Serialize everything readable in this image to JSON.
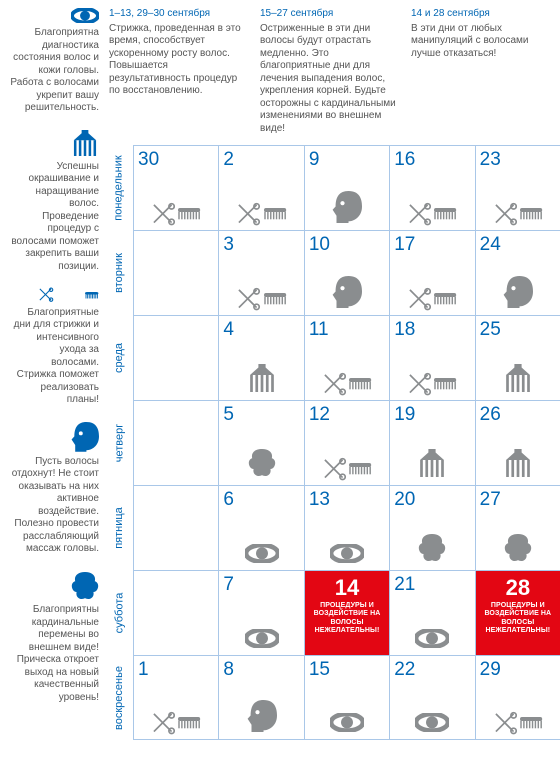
{
  "colors": {
    "accent": "#0066b3",
    "grid": "#a9c7e8",
    "icon": "#8a8d8f",
    "warn_bg": "#e30613",
    "warn_text": "#ffffff",
    "text": "#555555"
  },
  "legend": [
    {
      "icon": "eye",
      "text": "Благоприятна диагностика состояния волос и кожи головы. Работа с волосами укрепит вашу решительность."
    },
    {
      "icon": "color-comb",
      "text": "Успешны окрашивание и наращивание волос. Проведение процедур с волосами поможет закрепить ваши позиции."
    },
    {
      "icon": "cut-comb",
      "text": "Благоприятные дни для стрижки и интенсивного ухода за волосами. Стрижка поможет реализовать планы!"
    },
    {
      "icon": "head",
      "text": "Пусть волосы отдохнут! Не стоит оказывать на них активное воздействие. Полезно провести расслабляющий массаж головы."
    },
    {
      "icon": "curl",
      "text": "Благоприятны кардинальные перемены во внешнем виде! Прическа откроет выход на новый качественный уровень!"
    }
  ],
  "periods": [
    {
      "title": "1–13, 29–30 сентября",
      "text": "Стрижка, проведенная в это время, способствует ускоренному росту волос. Повышается результативность процедур по восстановлению."
    },
    {
      "title": "15–27 сентября",
      "text": "Остриженные в эти дни волосы будут отрастать медленно. Это благоприятные дни для лечения выпадения волос, укрепления корней. Будьте осторожны с кардинальными изменениями во внешнем виде!"
    },
    {
      "title": "14 и 28 сентября",
      "text": "В эти дни от любых манипуляций с волосами лучше отказаться!"
    }
  ],
  "day_labels": [
    "понедельник",
    "вторник",
    "среда",
    "четверг",
    "пятница",
    "суббота",
    "воскресенье"
  ],
  "rows": [
    [
      {
        "n": 30,
        "icons": [
          "cut-comb"
        ]
      },
      {
        "n": 2,
        "icons": [
          "cut-comb"
        ]
      },
      {
        "n": 9,
        "icons": [
          "head"
        ]
      },
      {
        "n": 16,
        "icons": [
          "cut-comb"
        ]
      },
      {
        "n": 23,
        "icons": [
          "cut-comb"
        ]
      }
    ],
    [
      {
        "n": null,
        "icons": []
      },
      {
        "n": 3,
        "icons": [
          "cut-comb"
        ]
      },
      {
        "n": 10,
        "icons": [
          "head"
        ]
      },
      {
        "n": 17,
        "icons": [
          "cut-comb"
        ]
      },
      {
        "n": 24,
        "icons": [
          "head"
        ]
      }
    ],
    [
      {
        "n": null,
        "icons": []
      },
      {
        "n": 4,
        "icons": [
          "color-comb"
        ]
      },
      {
        "n": 11,
        "icons": [
          "cut-comb"
        ]
      },
      {
        "n": 18,
        "icons": [
          "cut-comb"
        ]
      },
      {
        "n": 25,
        "icons": [
          "color-comb"
        ]
      }
    ],
    [
      {
        "n": null,
        "icons": []
      },
      {
        "n": 5,
        "icons": [
          "curl"
        ]
      },
      {
        "n": 12,
        "icons": [
          "cut-comb"
        ]
      },
      {
        "n": 19,
        "icons": [
          "color-comb"
        ]
      },
      {
        "n": 26,
        "icons": [
          "color-comb"
        ]
      }
    ],
    [
      {
        "n": null,
        "icons": []
      },
      {
        "n": 6,
        "icons": [
          "eye"
        ]
      },
      {
        "n": 13,
        "icons": [
          "eye"
        ]
      },
      {
        "n": 20,
        "icons": [
          "curl"
        ]
      },
      {
        "n": 27,
        "icons": [
          "curl"
        ]
      }
    ],
    [
      {
        "n": null,
        "icons": []
      },
      {
        "n": 7,
        "icons": [
          "eye"
        ]
      },
      {
        "n": 14,
        "warn": true
      },
      {
        "n": 21,
        "icons": [
          "eye"
        ]
      },
      {
        "n": 28,
        "warn": true
      }
    ],
    [
      {
        "n": 1,
        "icons": [
          "cut-comb"
        ]
      },
      {
        "n": 8,
        "icons": [
          "head"
        ]
      },
      {
        "n": 15,
        "icons": [
          "eye"
        ]
      },
      {
        "n": 22,
        "icons": [
          "eye"
        ]
      },
      {
        "n": 29,
        "icons": [
          "cut-comb"
        ]
      }
    ]
  ],
  "warn_text": "ПРОЦЕДУРЫ И ВОЗДЕЙСТВИЕ НА ВОЛОСЫ НЕЖЕЛАТЕЛЬНЫ!"
}
